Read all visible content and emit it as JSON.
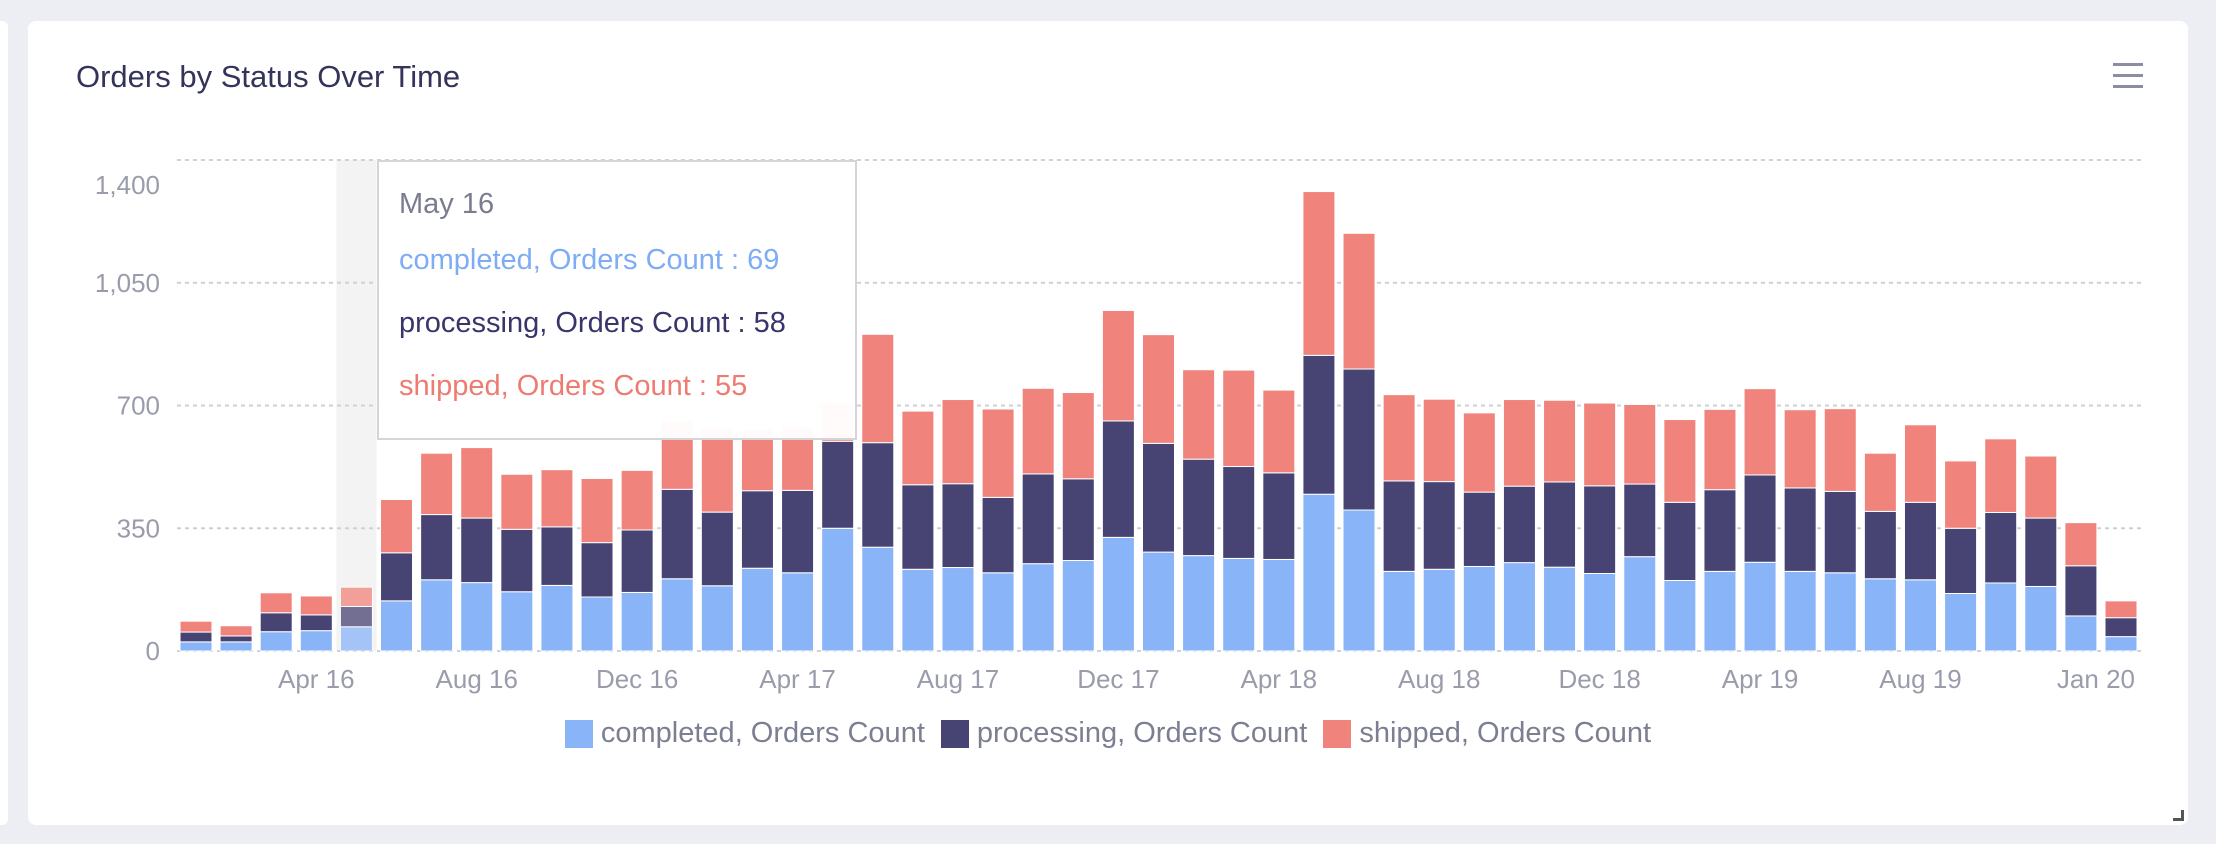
{
  "chart_data": {
    "type": "bar",
    "stacked": true,
    "title": "Orders by Status Over Time",
    "xlabel": "",
    "ylabel": "",
    "ylim": [
      0,
      1400
    ],
    "yticks": [
      "0",
      "350",
      "700",
      "1,050",
      "1,400"
    ],
    "ytick_values": [
      0,
      350,
      700,
      1050,
      1400
    ],
    "grid": true,
    "legend": "bottom",
    "categories": [
      "Jan 16",
      "Feb 16",
      "Mar 16",
      "Apr 16",
      "May 16",
      "Jun 16",
      "Jul 16",
      "Aug 16",
      "Sep 16",
      "Oct 16",
      "Nov 16",
      "Dec 16",
      "Jan 17",
      "Feb 17",
      "Mar 17",
      "Apr 17",
      "May 17",
      "Jun 17",
      "Jul 17",
      "Aug 17",
      "Sep 17",
      "Oct 17",
      "Nov 17",
      "Dec 17",
      "Jan 18",
      "Feb 18",
      "Mar 18",
      "Apr 18",
      "May 18",
      "Jun 18",
      "Jul 18",
      "Aug 18",
      "Sep 18",
      "Oct 18",
      "Nov 18",
      "Dec 18",
      "Jan 19",
      "Feb 19",
      "Mar 19",
      "Apr 19",
      "May 19",
      "Jun 19",
      "Jul 19",
      "Aug 19",
      "Sep 19",
      "Oct 19",
      "Nov 19",
      "Dec 19",
      "Jan 20"
    ],
    "xtick_labels": [
      {
        "label": "Apr 16",
        "category": "Apr 16"
      },
      {
        "label": "Aug 16",
        "category": "Aug 16"
      },
      {
        "label": "Dec 16",
        "category": "Dec 16"
      },
      {
        "label": "Apr 17",
        "category": "Apr 17"
      },
      {
        "label": "Aug 17",
        "category": "Aug 17"
      },
      {
        "label": "Dec 17",
        "category": "Dec 17"
      },
      {
        "label": "Apr 18",
        "category": "Apr 18"
      },
      {
        "label": "Aug 18",
        "category": "Aug 18"
      },
      {
        "label": "Dec 18",
        "category": "Dec 18"
      },
      {
        "label": "Apr 19",
        "category": "Apr 19"
      },
      {
        "label": "Aug 19",
        "category": "Aug 19"
      },
      {
        "label": "Jan 20",
        "category": "Jan 20"
      }
    ],
    "series": [
      {
        "name": "completed, Orders Count",
        "color": "#8ab4f8",
        "values": [
          26,
          26,
          55,
          58,
          69,
          143,
          203,
          195,
          169,
          187,
          154,
          167,
          206,
          186,
          236,
          223,
          350,
          296,
          233,
          238,
          223,
          249,
          258,
          324,
          282,
          272,
          264,
          261,
          447,
          402,
          227,
          233,
          241,
          252,
          239,
          221,
          269,
          201,
          227,
          253,
          227,
          223,
          206,
          203,
          164,
          194,
          184,
          100,
          41
        ]
      },
      {
        "name": "processing, Orders Count",
        "color": "#474474",
        "values": [
          28,
          17,
          54,
          45,
          58,
          137,
          186,
          184,
          178,
          167,
          155,
          178,
          255,
          210,
          221,
          235,
          248,
          298,
          241,
          239,
          215,
          256,
          233,
          332,
          310,
          275,
          262,
          247,
          396,
          402,
          258,
          250,
          212,
          218,
          243,
          250,
          207,
          223,
          233,
          249,
          238,
          232,
          192,
          221,
          186,
          201,
          195,
          143,
          54
        ]
      },
      {
        "name": "shipped, Orders Count",
        "color": "#f0847c",
        "values": [
          31,
          29,
          57,
          54,
          55,
          152,
          175,
          201,
          157,
          163,
          183,
          170,
          195,
          240,
          175,
          180,
          110,
          309,
          210,
          240,
          252,
          244,
          246,
          315,
          310,
          255,
          275,
          236,
          467,
          387,
          246,
          235,
          226,
          247,
          233,
          236,
          227,
          236,
          229,
          246,
          223,
          236,
          166,
          221,
          192,
          210,
          177,
          123,
          48
        ]
      }
    ]
  },
  "header": {
    "title": "Orders by Status Over Time",
    "menu_icon": "hamburger-menu-icon"
  },
  "tooltip": {
    "title": "May 16",
    "lines": [
      {
        "text": "completed, Orders Count : 69",
        "color": "#7fadf5"
      },
      {
        "text": "processing, Orders Count : 58",
        "color": "#38356a"
      },
      {
        "text": "shipped, Orders Count : 55",
        "color": "#ee7b72"
      }
    ]
  },
  "legend": {
    "items": [
      "completed, Orders Count",
      "processing, Orders Count",
      "shipped, Orders Count"
    ]
  }
}
